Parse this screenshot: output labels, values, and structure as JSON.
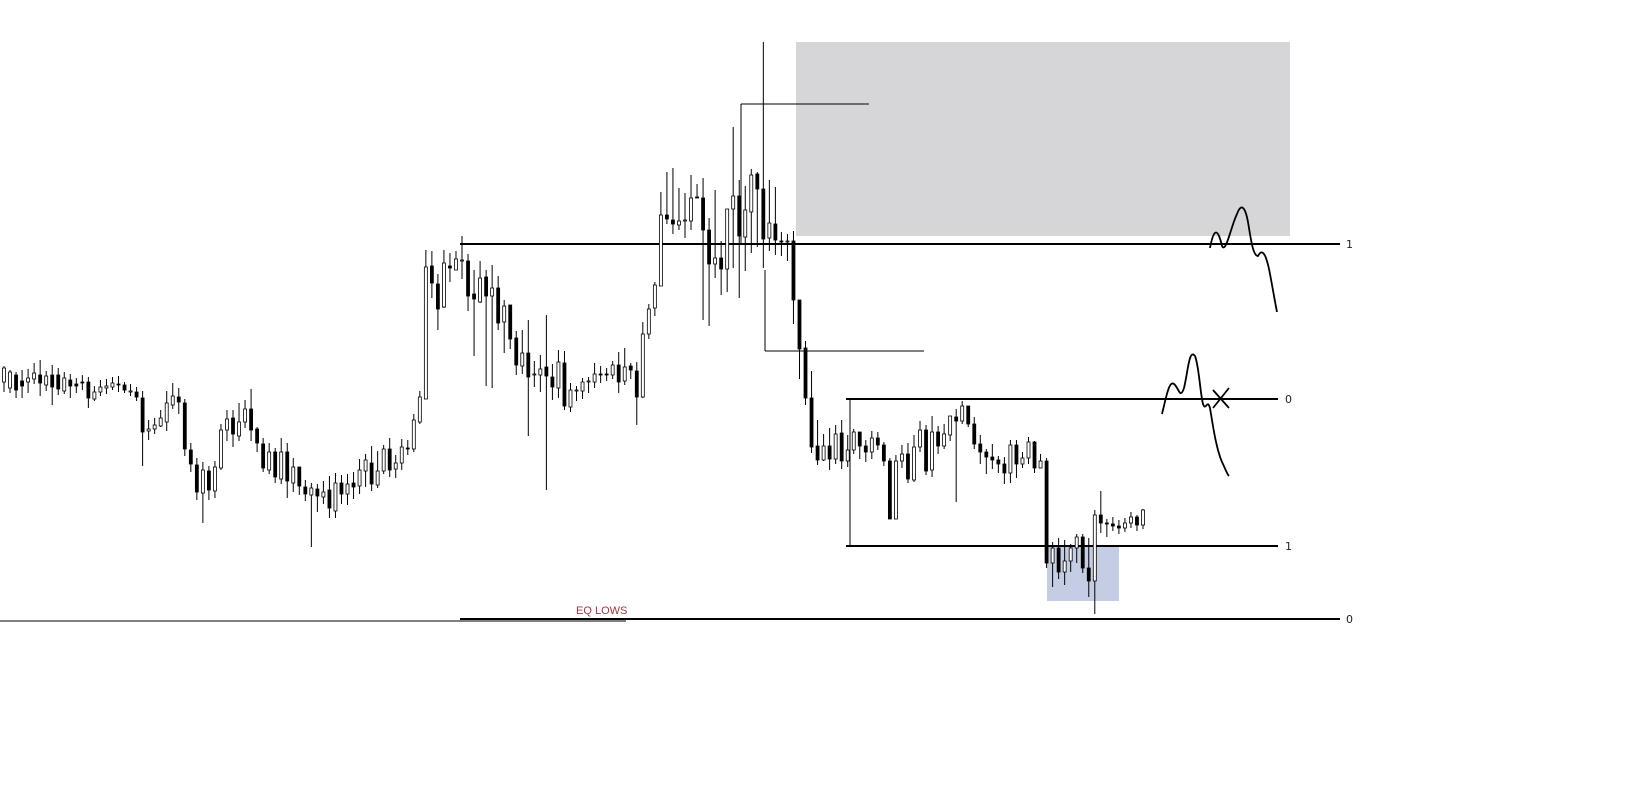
{
  "chart_data": {
    "type": "candlestick",
    "title": "",
    "xlabel": "",
    "ylabel": "",
    "grid": false,
    "legend": "none",
    "ylim": [
      0,
      811
    ],
    "colors": {
      "up": "#ffffff",
      "down": "#000000",
      "wick": "#000000",
      "supply_zone": "#d6d6d8",
      "demand_zone": "#c4cde3",
      "line": "#000000",
      "eq_text": "#a03a3a"
    },
    "candles": [
      [
        382,
        368,
        392,
        366
      ],
      [
        388,
        372,
        393,
        370
      ],
      [
        375,
        390,
        398,
        372
      ],
      [
        381,
        386,
        398,
        370
      ],
      [
        382,
        378,
        393,
        369
      ],
      [
        379,
        373,
        384,
        363
      ],
      [
        375,
        383,
        396,
        360
      ],
      [
        385,
        376,
        391,
        371
      ],
      [
        375,
        387,
        405,
        365
      ],
      [
        375,
        389,
        395,
        368
      ],
      [
        391,
        378,
        394,
        372
      ],
      [
        380,
        386,
        398,
        374
      ],
      [
        384,
        386,
        393,
        378
      ],
      [
        382,
        383,
        390,
        375
      ],
      [
        382,
        398,
        408,
        377
      ],
      [
        399,
        392,
        401,
        386
      ],
      [
        392,
        387,
        396,
        380
      ],
      [
        388,
        386,
        394,
        379
      ],
      [
        387,
        383,
        390,
        377
      ],
      [
        384,
        384,
        392,
        376
      ],
      [
        385,
        390,
        393,
        382
      ],
      [
        392,
        391,
        396,
        384
      ],
      [
        392,
        397,
        401,
        387
      ],
      [
        398,
        432,
        466,
        391
      ],
      [
        431,
        429,
        440,
        420
      ],
      [
        429,
        425,
        434,
        418
      ],
      [
        426,
        418,
        427,
        410
      ],
      [
        422,
        403,
        431,
        391
      ],
      [
        405,
        396,
        409,
        383
      ],
      [
        397,
        402,
        414,
        388
      ],
      [
        403,
        449,
        456,
        399
      ],
      [
        450,
        464,
        472,
        443
      ],
      [
        465,
        492,
        500,
        458
      ],
      [
        493,
        470,
        523,
        462
      ],
      [
        471,
        490,
        500,
        466
      ],
      [
        491,
        467,
        498,
        461
      ],
      [
        468,
        430,
        470,
        424
      ],
      [
        430,
        419,
        441,
        410
      ],
      [
        418,
        434,
        447,
        410
      ],
      [
        436,
        422,
        441,
        403
      ],
      [
        422,
        409,
        428,
        400
      ],
      [
        409,
        430,
        441,
        389
      ],
      [
        429,
        443,
        452,
        427
      ],
      [
        444,
        468,
        472,
        438
      ],
      [
        470,
        452,
        474,
        443
      ],
      [
        452,
        477,
        483,
        448
      ],
      [
        479,
        452,
        484,
        438
      ],
      [
        452,
        481,
        498,
        443
      ],
      [
        483,
        467,
        492,
        458
      ],
      [
        467,
        486,
        495,
        474
      ],
      [
        487,
        494,
        501,
        480
      ],
      [
        495,
        488,
        547,
        483
      ],
      [
        489,
        496,
        512,
        484
      ],
      [
        497,
        492,
        504,
        481
      ],
      [
        490,
        508,
        518,
        476
      ],
      [
        511,
        483,
        518,
        473
      ],
      [
        483,
        494,
        504,
        475
      ],
      [
        494,
        484,
        505,
        474
      ],
      [
        483,
        487,
        499,
        472
      ],
      [
        486,
        470,
        494,
        459
      ],
      [
        471,
        460,
        487,
        454
      ],
      [
        463,
        484,
        491,
        446
      ],
      [
        485,
        471,
        488,
        451
      ],
      [
        471,
        449,
        474,
        445
      ],
      [
        449,
        470,
        477,
        438
      ],
      [
        469,
        463,
        478,
        455
      ],
      [
        463,
        447,
        470,
        439
      ],
      [
        448,
        448,
        455,
        440
      ],
      [
        449,
        420,
        452,
        414
      ],
      [
        422,
        397,
        424,
        391
      ],
      [
        399,
        267,
        275,
        250
      ],
      [
        266,
        283,
        298,
        251
      ],
      [
        284,
        309,
        330,
        274
      ],
      [
        307,
        263,
        308,
        250
      ],
      [
        266,
        268,
        282,
        253
      ],
      [
        270,
        259,
        270,
        251
      ],
      [
        261,
        260,
        279,
        236
      ],
      [
        261,
        296,
        311,
        254
      ],
      [
        294,
        299,
        356,
        270
      ],
      [
        302,
        278,
        303,
        261
      ],
      [
        277,
        296,
        386,
        270
      ],
      [
        296,
        288,
        388,
        265
      ],
      [
        288,
        323,
        330,
        276
      ],
      [
        322,
        306,
        353,
        300
      ],
      [
        305,
        339,
        349,
        322
      ],
      [
        338,
        365,
        375,
        331
      ],
      [
        366,
        353,
        374,
        330
      ],
      [
        353,
        377,
        436,
        320
      ],
      [
        375,
        374,
        387,
        361
      ],
      [
        375,
        369,
        392,
        355
      ],
      [
        367,
        376,
        490,
        315
      ],
      [
        377,
        387,
        400,
        364
      ],
      [
        388,
        362,
        398,
        350
      ],
      [
        363,
        406,
        410,
        351
      ],
      [
        407,
        390,
        412,
        383
      ],
      [
        391,
        390,
        401,
        386
      ],
      [
        391,
        382,
        399,
        378
      ],
      [
        382,
        381,
        393,
        377
      ],
      [
        382,
        374,
        388,
        363
      ],
      [
        374,
        374,
        383,
        366
      ],
      [
        374,
        375,
        381,
        368
      ],
      [
        375,
        365,
        379,
        361
      ],
      [
        365,
        382,
        393,
        352
      ],
      [
        381,
        367,
        385,
        348
      ],
      [
        366,
        370,
        379,
        363
      ],
      [
        371,
        397,
        425,
        362
      ],
      [
        397,
        334,
        398,
        322
      ],
      [
        334,
        309,
        339,
        304
      ],
      [
        308,
        285,
        316,
        282
      ],
      [
        286,
        215,
        225,
        192
      ],
      [
        215,
        219,
        224,
        172
      ],
      [
        220,
        224,
        234,
        168
      ],
      [
        225,
        221,
        230,
        188
      ],
      [
        221,
        220,
        238,
        193
      ],
      [
        221,
        198,
        230,
        175
      ],
      [
        197,
        197,
        197,
        184
      ],
      [
        198,
        230,
        320,
        178
      ],
      [
        230,
        264,
        326,
        218
      ],
      [
        264,
        258,
        278,
        190
      ],
      [
        258,
        269,
        295,
        241
      ],
      [
        269,
        209,
        292,
        211
      ],
      [
        209,
        196,
        268,
        127
      ],
      [
        196,
        236,
        298,
        180
      ],
      [
        237,
        210,
        271,
        186
      ],
      [
        212,
        175,
        253,
        169
      ],
      [
        174,
        189,
        247,
        172
      ],
      [
        189,
        239,
        268,
        42
      ],
      [
        238,
        223,
        251,
        180
      ],
      [
        224,
        240,
        255,
        187
      ],
      [
        241,
        241,
        256,
        232
      ],
      [
        242,
        241,
        261,
        234
      ],
      [
        241,
        300,
        324,
        231
      ],
      [
        300,
        349,
        379,
        319
      ],
      [
        348,
        398,
        405,
        341
      ],
      [
        398,
        447,
        453,
        371
      ],
      [
        446,
        460,
        465,
        420
      ],
      [
        460,
        446,
        461,
        434
      ],
      [
        446,
        459,
        470,
        428
      ],
      [
        459,
        434,
        464,
        425
      ],
      [
        433,
        461,
        469,
        420
      ],
      [
        461,
        450,
        467,
        435
      ],
      [
        450,
        432,
        454,
        429
      ],
      [
        432,
        446,
        459,
        434
      ],
      [
        446,
        452,
        462,
        440
      ],
      [
        452,
        438,
        459,
        431
      ],
      [
        438,
        445,
        450,
        432
      ],
      [
        445,
        461,
        466,
        442
      ],
      [
        461,
        519,
        519,
        458
      ],
      [
        519,
        461,
        467,
        455
      ],
      [
        461,
        454,
        468,
        445
      ],
      [
        454,
        479,
        483,
        443
      ],
      [
        480,
        447,
        482,
        435
      ],
      [
        447,
        430,
        452,
        421
      ],
      [
        430,
        471,
        475,
        425
      ],
      [
        470,
        432,
        477,
        416
      ],
      [
        432,
        446,
        454,
        426
      ],
      [
        446,
        434,
        449,
        424
      ],
      [
        435,
        416,
        441,
        417
      ],
      [
        417,
        421,
        502,
        409
      ],
      [
        421,
        406,
        424,
        401
      ],
      [
        406,
        424,
        427,
        416
      ],
      [
        424,
        444,
        449,
        417
      ],
      [
        444,
        452,
        464,
        435
      ],
      [
        452,
        457,
        474,
        449
      ],
      [
        457,
        460,
        469,
        444
      ],
      [
        460,
        464,
        473,
        456
      ],
      [
        464,
        473,
        484,
        457
      ],
      [
        473,
        445,
        483,
        440
      ],
      [
        445,
        464,
        478,
        440
      ],
      [
        464,
        458,
        468,
        452
      ],
      [
        458,
        442,
        464,
        437
      ],
      [
        442,
        468,
        473,
        441
      ],
      [
        468,
        461,
        468,
        454
      ],
      [
        461,
        563,
        568,
        458
      ],
      [
        563,
        548,
        587,
        542
      ],
      [
        548,
        572,
        579,
        538
      ],
      [
        572,
        561,
        585,
        540
      ],
      [
        561,
        548,
        572,
        544
      ],
      [
        548,
        537,
        563,
        534
      ],
      [
        537,
        568,
        573,
        534
      ],
      [
        568,
        581,
        597,
        538
      ],
      [
        581,
        515,
        614,
        510
      ],
      [
        515,
        523,
        533,
        491
      ],
      [
        523,
        524,
        537,
        519
      ],
      [
        524,
        526,
        531,
        517
      ],
      [
        526,
        528,
        534,
        520
      ],
      [
        528,
        523,
        532,
        518
      ],
      [
        523,
        517,
        528,
        512
      ],
      [
        517,
        525,
        531,
        515
      ],
      [
        525,
        510,
        529,
        509
      ]
    ],
    "levels": [
      {
        "label": "1",
        "y": 244
      },
      {
        "label": "0",
        "y": 399
      },
      {
        "label": "1",
        "y": 546
      },
      {
        "label": "0",
        "y": 619
      }
    ],
    "annotations": [
      {
        "text": "EQ LOWS"
      }
    ]
  }
}
